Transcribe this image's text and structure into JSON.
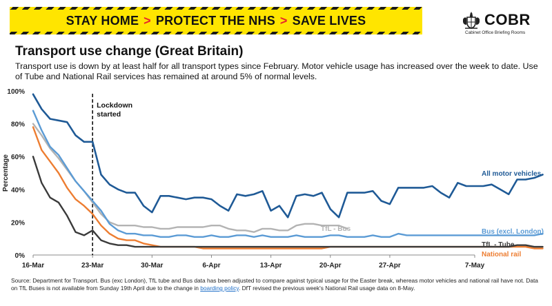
{
  "banner": {
    "part1": "STAY HOME",
    "part2": "PROTECT THE NHS",
    "part3": "SAVE LIVES",
    "separator": ">"
  },
  "logo": {
    "title": "COBR",
    "subtitle": "Cabinet Office Briefing Rooms",
    "icon": "royal-crest-icon"
  },
  "headline": {
    "title": "Transport use change (Great Britain)",
    "subtitle": "Transport use is down by at least half for all transport types since February. Motor vehicle usage has increased over the week to date. Use of Tube and National Rail services has remained at around 5% of normal levels."
  },
  "chart_data": {
    "type": "line",
    "ylabel": "Percentage",
    "ylim": [
      0,
      100
    ],
    "yticks": [
      "0%",
      "20%",
      "40%",
      "60%",
      "80%",
      "100%"
    ],
    "xticks": [
      "16-Mar",
      "23-Mar",
      "30-Mar",
      "6-Apr",
      "13-Apr",
      "20-Apr",
      "27-Apr",
      "7-May"
    ],
    "x_range": [
      "2020-03-16",
      "2020-05-07"
    ],
    "annotation": {
      "date": "2020-03-23",
      "label_line1": "Lockdown",
      "label_line2": "started"
    },
    "grid": false,
    "series": [
      {
        "name": "All motor vehicles",
        "color": "#1f5a96",
        "start": "2020-03-16",
        "values": [
          98,
          89,
          83,
          82,
          81,
          73,
          69,
          69,
          49,
          43,
          40,
          38,
          38,
          30,
          26,
          36,
          36,
          35,
          34,
          35,
          35,
          34,
          30,
          27,
          37,
          36,
          37,
          39,
          27,
          30,
          23,
          36,
          37,
          36,
          38,
          28,
          23,
          38,
          38,
          38,
          39,
          33,
          31,
          41,
          41,
          41,
          41,
          42,
          38,
          35,
          44,
          42,
          42,
          42,
          43,
          40,
          37,
          46,
          46,
          47,
          49
        ]
      },
      {
        "name": "Bus (excl. London)",
        "color": "#5b9bd5",
        "start": "2020-03-16",
        "values": [
          88,
          76,
          66,
          61,
          53,
          45,
          39,
          33,
          27,
          19,
          15,
          13,
          13,
          12,
          12,
          11,
          11,
          12,
          12,
          11,
          11,
          12,
          11,
          11,
          12,
          12,
          11,
          12,
          11,
          11,
          11,
          12,
          11,
          11,
          11,
          12,
          12,
          11,
          11,
          11,
          12,
          11,
          11,
          13,
          12,
          12,
          12,
          12,
          12,
          12,
          12,
          12,
          12,
          12,
          12,
          12,
          12,
          12,
          12,
          12,
          13
        ]
      },
      {
        "name": "TfL - Bus",
        "color": "#b3b3b3",
        "start": "2020-03-16",
        "values": [
          80,
          73,
          65,
          59,
          52,
          45,
          39,
          32,
          25,
          20,
          18,
          18,
          18,
          17,
          17,
          16,
          16,
          17,
          17,
          17,
          17,
          18,
          18,
          16,
          15,
          15,
          14,
          16,
          16,
          15,
          15,
          18,
          19,
          19,
          18,
          18,
          18,
          16
        ]
      },
      {
        "name": "TfL - Tube",
        "color": "#3a3a3a",
        "start": "2020-03-16",
        "values": [
          60,
          44,
          35,
          32,
          24,
          14,
          12,
          15,
          9,
          7,
          6,
          6,
          5,
          5,
          5,
          5,
          5,
          5,
          5,
          5,
          5,
          5,
          5,
          5,
          5,
          5,
          5,
          5,
          5,
          5,
          5,
          5,
          5,
          5,
          5,
          5,
          5,
          5,
          5,
          5,
          5,
          5,
          5,
          5,
          5,
          5,
          5,
          5,
          5,
          5,
          5,
          5,
          5,
          5,
          5,
          5,
          5,
          6,
          6,
          5,
          5
        ]
      },
      {
        "name": "National rail",
        "color": "#ed7d31",
        "start": "2020-03-16",
        "values": [
          78,
          64,
          57,
          50,
          41,
          34,
          30,
          25,
          18,
          13,
          10,
          9,
          9,
          7,
          6,
          5,
          5,
          5,
          5,
          5,
          4,
          4,
          4,
          4,
          4,
          4,
          4,
          4,
          4,
          4,
          4,
          4,
          4,
          4,
          4,
          5,
          5,
          5,
          5,
          5,
          5,
          5,
          5,
          5,
          5,
          5,
          5,
          5,
          5,
          5,
          5,
          5,
          5,
          5,
          5,
          5,
          5,
          5,
          5,
          4,
          4
        ]
      }
    ]
  },
  "source": {
    "text1": "Source: Department for Transport. Bus (exc London), TfL tube and Bus data has been adjusted to compare against typical usage for the Easter break, whereas motor vehicles and national rail have not. Data on TfL Buses is not available from Sunday 19th April due to the change in ",
    "link": "boarding policy",
    "text2": ". DfT revised the previous week's National Rail usage data on 8-May."
  }
}
